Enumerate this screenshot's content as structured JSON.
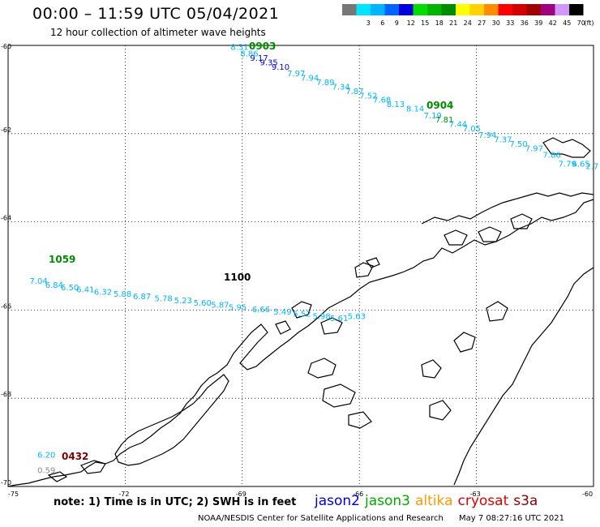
{
  "header": {
    "title": "00:00 – 11:59 UTC 05/04/2021",
    "subtitle": "12 hour collection of altimeter wave heights"
  },
  "scale": {
    "unit": "(ft)",
    "bins": [
      {
        "label": "",
        "color": "#777777"
      },
      {
        "label": "3",
        "color": "#00e5ff"
      },
      {
        "label": "6",
        "color": "#00b4ff"
      },
      {
        "label": "9",
        "color": "#0064ff"
      },
      {
        "label": "12",
        "color": "#0000dd"
      },
      {
        "label": "15",
        "color": "#00dd00"
      },
      {
        "label": "18",
        "color": "#00b400"
      },
      {
        "label": "21",
        "color": "#008c00"
      },
      {
        "label": "24",
        "color": "#ffff00"
      },
      {
        "label": "27",
        "color": "#ffd200"
      },
      {
        "label": "30",
        "color": "#ff8c00"
      },
      {
        "label": "33",
        "color": "#ff0000"
      },
      {
        "label": "36",
        "color": "#d20000"
      },
      {
        "label": "39",
        "color": "#a00000"
      },
      {
        "label": "42",
        "color": "#a0007d"
      },
      {
        "label": "45",
        "color": "#d296ff"
      },
      {
        "label": "70",
        "color": "#000000"
      }
    ]
  },
  "axes": {
    "lat_labels": [
      "-60",
      "-62",
      "-64",
      "-66",
      "-68",
      "-70"
    ],
    "lon_labels": [
      "-75",
      "-72",
      "-69",
      "-66",
      "-63",
      "-60"
    ]
  },
  "tracks": [
    {
      "pass_label": "0903",
      "pass_color": "#008c00",
      "points": [
        {
          "lon": -69.3,
          "lat": -60.1,
          "value": "8.31",
          "color": "#00b4ff"
        },
        {
          "lon": -69.05,
          "lat": -60.25,
          "value": "8.86",
          "color": "#00b4ff"
        },
        {
          "lon": -68.8,
          "lat": -60.35,
          "value": "9.17",
          "color": "#0000dd"
        },
        {
          "lon": -68.55,
          "lat": -60.45,
          "value": "9.35",
          "color": "#0000dd"
        },
        {
          "lon": -68.25,
          "lat": -60.55,
          "value": "9.10",
          "color": "#0000dd"
        },
        {
          "lon": -67.85,
          "lat": -60.7,
          "value": "7.97",
          "color": "#00b4ff"
        },
        {
          "lon": -67.5,
          "lat": -60.8,
          "value": "7.94",
          "color": "#00b4ff"
        },
        {
          "lon": -67.1,
          "lat": -60.9,
          "value": "7.89",
          "color": "#00b4ff"
        },
        {
          "lon": -66.7,
          "lat": -61.0,
          "value": "7.34",
          "color": "#00b4ff"
        },
        {
          "lon": -66.35,
          "lat": -61.1,
          "value": "7.87",
          "color": "#00b4ff"
        },
        {
          "lon": -66.0,
          "lat": -61.2,
          "value": "7.52",
          "color": "#00b4ff"
        },
        {
          "lon": -65.65,
          "lat": -61.3,
          "value": "7.68",
          "color": "#00b4ff"
        },
        {
          "lon": -65.3,
          "lat": -61.4,
          "value": "8.13",
          "color": "#00b4ff"
        },
        {
          "lon": -64.8,
          "lat": -61.5,
          "value": "8.14",
          "color": "#00b4ff"
        }
      ]
    },
    {
      "pass_label": "0904",
      "pass_color": "#008c00",
      "points": [
        {
          "lon": -64.35,
          "lat": -61.65,
          "value": "7.19",
          "color": "#00b4ff"
        },
        {
          "lon": -64.05,
          "lat": -61.75,
          "value": "7.81",
          "color": "#008c00"
        },
        {
          "lon": -63.7,
          "lat": -61.85,
          "value": "7.44",
          "color": "#00b4ff"
        },
        {
          "lon": -63.35,
          "lat": -61.95,
          "value": "7.05",
          "color": "#00b4ff"
        },
        {
          "lon": -62.95,
          "lat": -62.1,
          "value": "7.94",
          "color": "#00b4ff"
        },
        {
          "lon": -62.55,
          "lat": -62.2,
          "value": "7.37",
          "color": "#00b4ff"
        },
        {
          "lon": -62.15,
          "lat": -62.3,
          "value": "7.50",
          "color": "#00b4ff"
        },
        {
          "lon": -61.75,
          "lat": -62.4,
          "value": "7.97",
          "color": "#00b4ff"
        },
        {
          "lon": -61.3,
          "lat": -62.55,
          "value": "7.86",
          "color": "#00b4ff"
        },
        {
          "lon": -60.9,
          "lat": -62.75,
          "value": "7.79",
          "color": "#00b4ff"
        },
        {
          "lon": -60.55,
          "lat": -62.75,
          "value": "6.65",
          "color": "#00b4ff"
        },
        {
          "lon": -60.2,
          "lat": -62.8,
          "value": "2.7",
          "color": "#00b4ff"
        }
      ]
    },
    {
      "pass_label": "1059",
      "pass_color": "#008c00",
      "points": [
        {
          "lon": -74.45,
          "lat": -65.4,
          "value": "7.04",
          "color": "#00b4ff"
        },
        {
          "lon": -74.05,
          "lat": -65.5,
          "value": "6.84",
          "color": "#00b4ff"
        },
        {
          "lon": -73.65,
          "lat": -65.55,
          "value": "6.50",
          "color": "#00b4ff"
        },
        {
          "lon": -73.25,
          "lat": -65.6,
          "value": "6.41",
          "color": "#00b4ff"
        },
        {
          "lon": -72.8,
          "lat": -65.65,
          "value": "6.32",
          "color": "#00b4ff"
        },
        {
          "lon": -72.3,
          "lat": -65.7,
          "value": "5.88",
          "color": "#00b4ff"
        },
        {
          "lon": -71.8,
          "lat": -65.75,
          "value": "6.87",
          "color": "#00b4ff"
        },
        {
          "lon": -71.25,
          "lat": -65.8,
          "value": "5.78",
          "color": "#00b4ff"
        },
        {
          "lon": -70.75,
          "lat": -65.85,
          "value": "5.23",
          "color": "#00b4ff"
        },
        {
          "lon": -70.25,
          "lat": -65.9,
          "value": "5.60",
          "color": "#00b4ff"
        },
        {
          "lon": -69.8,
          "lat": -65.95,
          "value": "5.87",
          "color": "#00b4ff"
        },
        {
          "lon": -69.35,
          "lat": -66.0,
          "value": "5.95",
          "color": "#00b4ff"
        },
        {
          "lon": -68.75,
          "lat": -66.05,
          "value": "6.66",
          "color": "#00b4ff"
        },
        {
          "lon": -68.2,
          "lat": -66.1,
          "value": "5.49",
          "color": "#00b4ff"
        },
        {
          "lon": -67.7,
          "lat": -66.15,
          "value": "5.52",
          "color": "#00b4ff"
        },
        {
          "lon": -67.2,
          "lat": -66.2,
          "value": "5.98",
          "color": "#00b4ff"
        },
        {
          "lon": -66.75,
          "lat": -66.25,
          "value": "5.61",
          "color": "#00b4ff"
        },
        {
          "lon": -66.3,
          "lat": -66.2,
          "value": "5.63",
          "color": "#00b4ff"
        }
      ]
    },
    {
      "pass_label": "1100",
      "pass_color": "#000000",
      "points": []
    },
    {
      "pass_label": "0432",
      "pass_color": "#800000",
      "points": [
        {
          "lon": -74.25,
          "lat": -69.35,
          "value": "6.20",
          "color": "#00b4ff"
        },
        {
          "lon": -74.25,
          "lat": -69.7,
          "value": "0.59",
          "color": "#888888"
        }
      ]
    }
  ],
  "footer": {
    "note": "note:  1) Time is in UTC;  2) SWH is in feet",
    "satellites": [
      {
        "name": "jason2",
        "color": "#0000dd"
      },
      {
        "name": "jason3",
        "color": "#00aa00"
      },
      {
        "name": "altika",
        "color": "#ff9900"
      },
      {
        "name": "cryosat",
        "color": "#dd0000"
      },
      {
        "name": "s3a",
        "color": "#880000"
      }
    ],
    "credit": "NOAA/NESDIS Center for Satellite Applications and Research",
    "timestamp": "May  7 08:27:16 UTC 2021"
  }
}
